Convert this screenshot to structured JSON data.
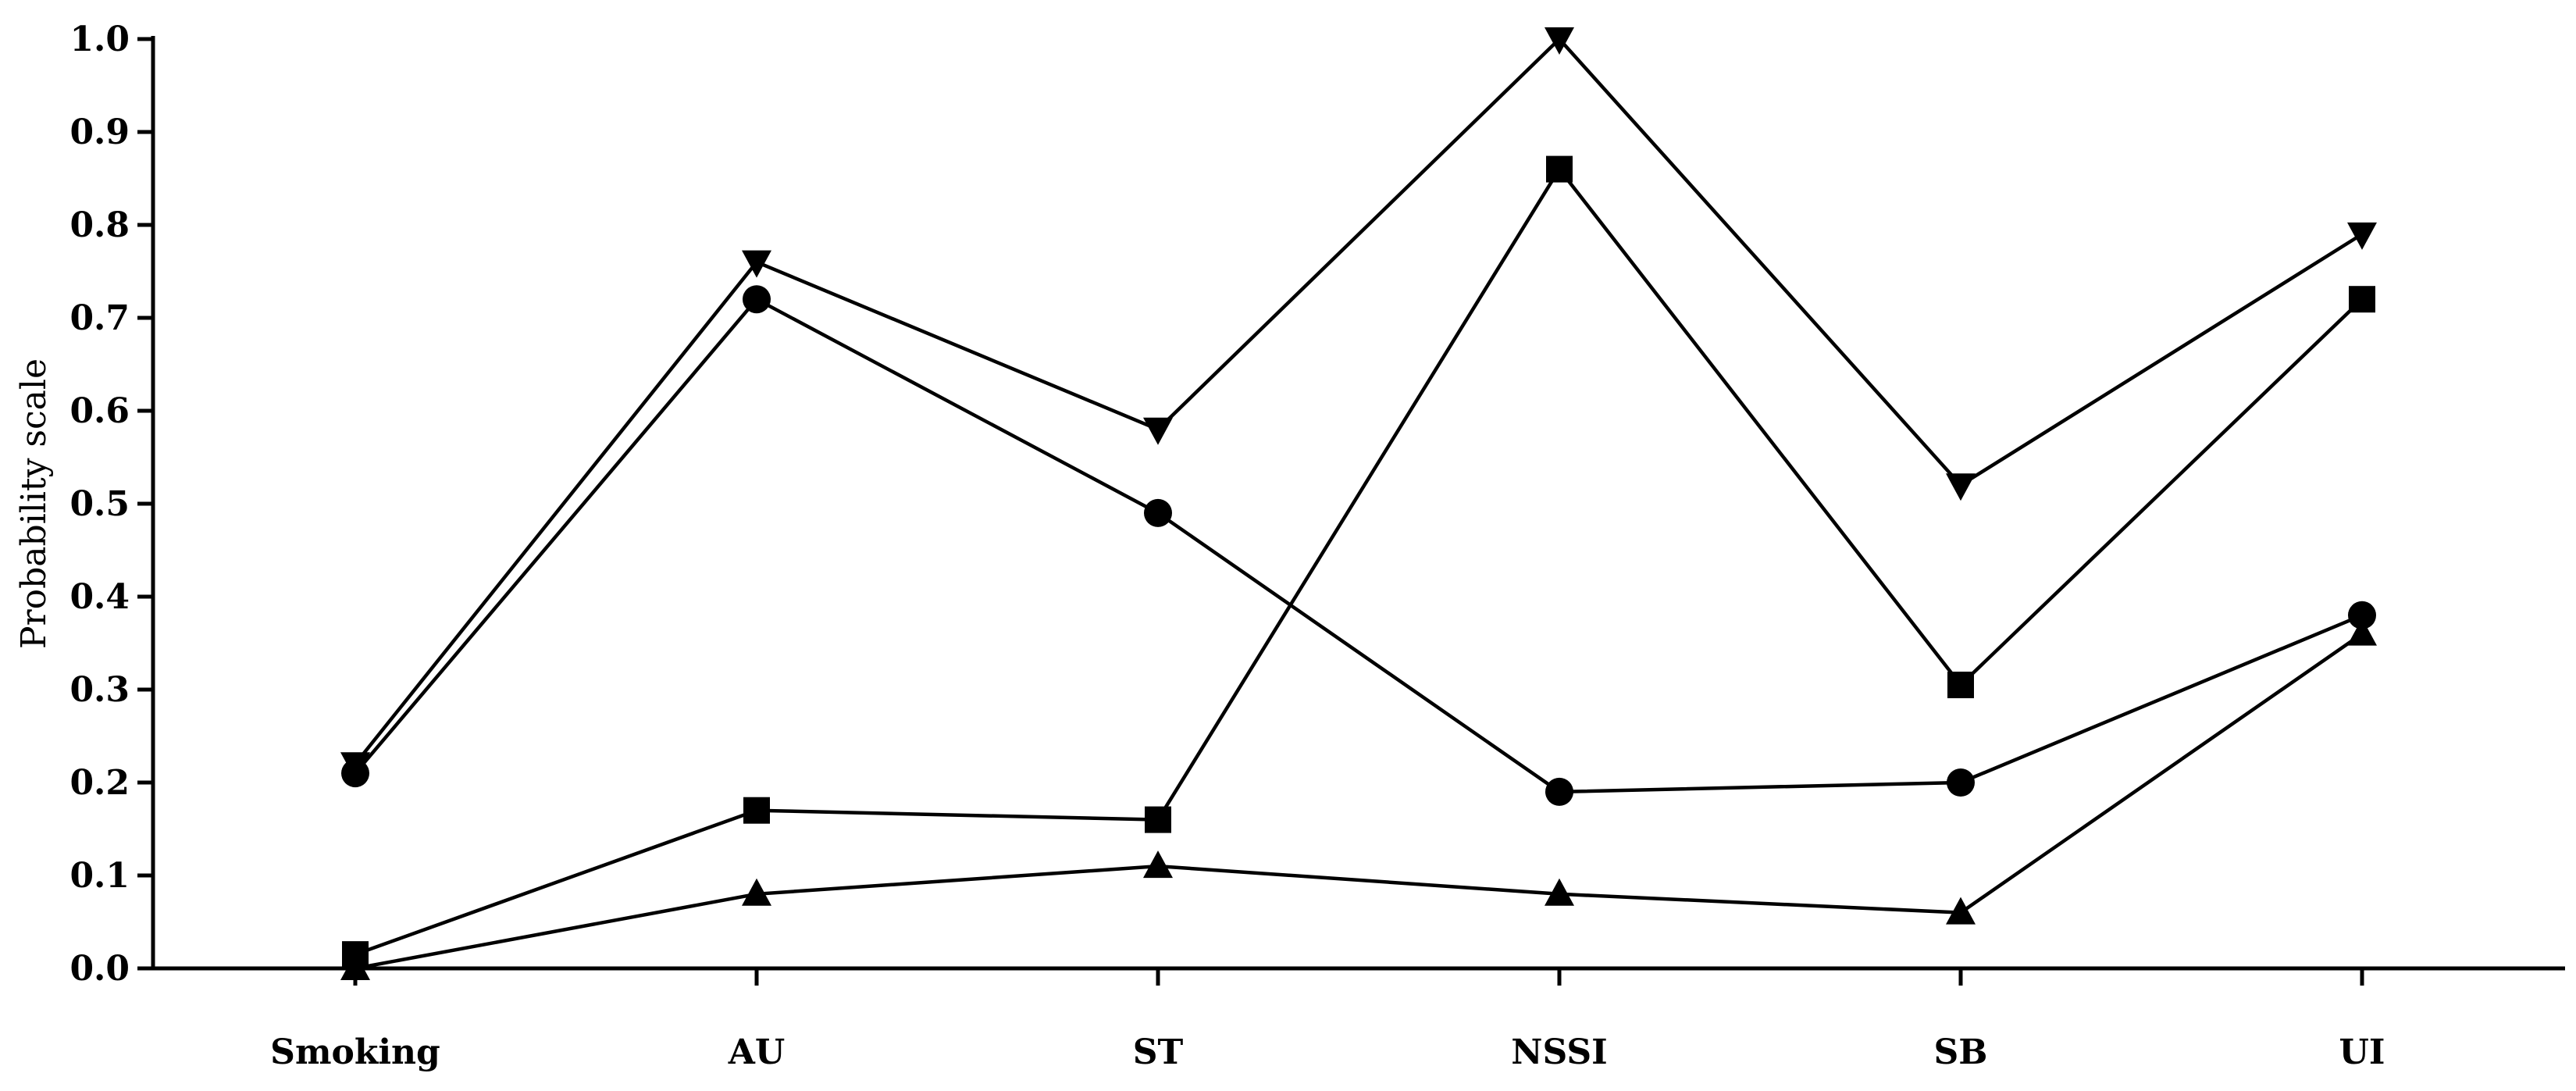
{
  "chart_data": {
    "type": "line",
    "title": "",
    "xlabel": "",
    "ylabel": "Probability scale",
    "ylim": [
      0,
      1.0
    ],
    "yticks": [
      "0.0",
      "0.1",
      "0.2",
      "0.3",
      "0.4",
      "0.5",
      "0.6",
      "0.7",
      "0.8",
      "0.9",
      "1.0"
    ],
    "grid": false,
    "legend": "none",
    "categories": [
      "Smoking",
      "AU",
      "ST",
      "NSSI",
      "SB",
      "UI"
    ],
    "series": [
      {
        "marker": "triangle-down",
        "color": "#000000",
        "values": [
          0.22,
          0.76,
          0.58,
          1.0,
          0.52,
          0.79
        ]
      },
      {
        "marker": "circle",
        "color": "#000000",
        "values": [
          0.21,
          0.72,
          0.49,
          0.19,
          0.2,
          0.38
        ]
      },
      {
        "marker": "square",
        "color": "#000000",
        "values": [
          0.015,
          0.17,
          0.16,
          0.86,
          0.305,
          0.72
        ]
      },
      {
        "marker": "triangle-up",
        "color": "#000000",
        "values": [
          0.0,
          0.08,
          0.11,
          0.08,
          0.06,
          0.36
        ]
      }
    ]
  }
}
